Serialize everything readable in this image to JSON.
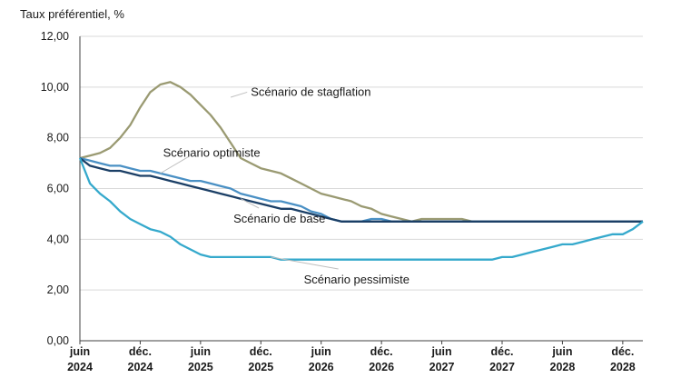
{
  "chart_data": {
    "type": "line",
    "ylabel": "Taux préférentiel, %",
    "title": "",
    "xlabel": "",
    "ylim": [
      0,
      12
    ],
    "y_ticks": [
      "0,00",
      "2,00",
      "4,00",
      "6,00",
      "8,00",
      "10,00",
      "12,00"
    ],
    "x_range": [
      "2024-06",
      "2028-12"
    ],
    "x_ticks": [
      {
        "x": "2024-06",
        "line1": "juin",
        "line2": "2024"
      },
      {
        "x": "2024-12",
        "line1": "déc.",
        "line2": "2024"
      },
      {
        "x": "2025-06",
        "line1": "juin",
        "line2": "2025"
      },
      {
        "x": "2025-12",
        "line1": "déc.",
        "line2": "2025"
      },
      {
        "x": "2026-06",
        "line1": "juin",
        "line2": "2026"
      },
      {
        "x": "2026-12",
        "line1": "déc.",
        "line2": "2026"
      },
      {
        "x": "2027-06",
        "line1": "juin",
        "line2": "2027"
      },
      {
        "x": "2027-12",
        "line1": "déc.",
        "line2": "2027"
      },
      {
        "x": "2028-06",
        "line1": "juin",
        "line2": "2028"
      },
      {
        "x": "2028-12",
        "line1": "déc.",
        "line2": "2028"
      }
    ],
    "grid": "horizontal",
    "legend": "none",
    "series": [
      {
        "name": "Scénario de stagflation",
        "color": "#9a9a72",
        "x": [
          "2024-06",
          "2024-07",
          "2024-08",
          "2024-09",
          "2024-10",
          "2024-11",
          "2024-12",
          "2025-01",
          "2025-02",
          "2025-03",
          "2025-04",
          "2025-05",
          "2025-06",
          "2025-07",
          "2025-08",
          "2025-09",
          "2025-10",
          "2025-11",
          "2025-12",
          "2026-01",
          "2026-02",
          "2026-03",
          "2026-04",
          "2026-05",
          "2026-06",
          "2026-07",
          "2026-08",
          "2026-09",
          "2026-10",
          "2026-11",
          "2026-12",
          "2027-01",
          "2027-02",
          "2027-03",
          "2027-04",
          "2027-05",
          "2027-06",
          "2027-07",
          "2027-08",
          "2027-09",
          "2028-12",
          "2029-02"
        ],
        "values": [
          7.2,
          7.3,
          7.4,
          7.6,
          8.0,
          8.5,
          9.2,
          9.8,
          10.1,
          10.2,
          10.0,
          9.7,
          9.3,
          8.9,
          8.4,
          7.8,
          7.2,
          7.0,
          6.8,
          6.7,
          6.6,
          6.4,
          6.2,
          6.0,
          5.8,
          5.7,
          5.6,
          5.5,
          5.3,
          5.2,
          5.0,
          4.9,
          4.8,
          4.7,
          4.8,
          4.8,
          4.8,
          4.8,
          4.8,
          4.7,
          4.7,
          4.7
        ]
      },
      {
        "name": "Scénario optimiste",
        "color": "#4a90c4",
        "x": [
          "2024-06",
          "2024-07",
          "2024-08",
          "2024-09",
          "2024-10",
          "2024-11",
          "2024-12",
          "2025-01",
          "2025-02",
          "2025-03",
          "2025-04",
          "2025-05",
          "2025-06",
          "2025-07",
          "2025-08",
          "2025-09",
          "2025-10",
          "2025-11",
          "2025-12",
          "2026-01",
          "2026-02",
          "2026-03",
          "2026-04",
          "2026-05",
          "2026-06",
          "2026-07",
          "2026-08",
          "2026-09",
          "2026-10",
          "2026-11",
          "2026-12",
          "2027-01",
          "2028-12",
          "2029-02"
        ],
        "values": [
          7.2,
          7.1,
          7.0,
          6.9,
          6.9,
          6.8,
          6.7,
          6.7,
          6.6,
          6.5,
          6.4,
          6.3,
          6.3,
          6.2,
          6.1,
          6.0,
          5.8,
          5.7,
          5.6,
          5.5,
          5.5,
          5.4,
          5.3,
          5.1,
          5.0,
          4.8,
          4.7,
          4.7,
          4.7,
          4.8,
          4.8,
          4.7,
          4.7,
          4.7
        ]
      },
      {
        "name": "Scénario de base",
        "color": "#1b3f66",
        "x": [
          "2024-06",
          "2024-07",
          "2024-08",
          "2024-09",
          "2024-10",
          "2024-11",
          "2024-12",
          "2025-01",
          "2025-02",
          "2025-03",
          "2025-04",
          "2025-05",
          "2025-06",
          "2025-07",
          "2025-08",
          "2025-09",
          "2025-10",
          "2025-11",
          "2025-12",
          "2026-01",
          "2026-02",
          "2026-03",
          "2026-04",
          "2026-05",
          "2026-06",
          "2026-07",
          "2026-08",
          "2028-12",
          "2029-02"
        ],
        "values": [
          7.2,
          6.9,
          6.8,
          6.7,
          6.7,
          6.6,
          6.5,
          6.5,
          6.4,
          6.3,
          6.2,
          6.1,
          6.0,
          5.9,
          5.8,
          5.7,
          5.6,
          5.5,
          5.4,
          5.3,
          5.2,
          5.2,
          5.1,
          5.0,
          4.9,
          4.8,
          4.7,
          4.7,
          4.7
        ]
      },
      {
        "name": "Scénario pessimiste",
        "color": "#35a9cc",
        "x": [
          "2024-06",
          "2024-07",
          "2024-08",
          "2024-09",
          "2024-10",
          "2024-11",
          "2024-12",
          "2025-01",
          "2025-02",
          "2025-03",
          "2025-04",
          "2025-05",
          "2025-06",
          "2025-07",
          "2025-08",
          "2025-09",
          "2025-10",
          "2025-11",
          "2025-12",
          "2026-01",
          "2026-02",
          "2027-11",
          "2027-12",
          "2028-01",
          "2028-02",
          "2028-03",
          "2028-04",
          "2028-05",
          "2028-06",
          "2028-07",
          "2028-08",
          "2028-09",
          "2028-10",
          "2028-11",
          "2028-12",
          "2029-01",
          "2029-02"
        ],
        "values": [
          7.2,
          6.2,
          5.8,
          5.5,
          5.1,
          4.8,
          4.6,
          4.4,
          4.3,
          4.1,
          3.8,
          3.6,
          3.4,
          3.3,
          3.3,
          3.3,
          3.3,
          3.3,
          3.3,
          3.3,
          3.2,
          3.2,
          3.3,
          3.3,
          3.4,
          3.5,
          3.6,
          3.7,
          3.8,
          3.8,
          3.9,
          4.0,
          4.1,
          4.2,
          4.2,
          4.4,
          4.7
        ]
      }
    ],
    "annotations": [
      {
        "text": "Scénario de stagflation",
        "series": 0,
        "at": [
          "2025-09",
          9.6
        ],
        "label": [
          "2025-11",
          9.8
        ]
      },
      {
        "text": "Scénario optimiste",
        "series": 1,
        "at": [
          "2025-02",
          6.6
        ],
        "label": [
          "2025-03",
          7.4
        ]
      },
      {
        "text": "Scénario de base",
        "series": 2,
        "at": [
          "2025-10",
          5.6
        ],
        "label": [
          "2025-10",
          4.8
        ]
      },
      {
        "text": "Scénario pessimiste",
        "series": 3,
        "at": [
          "2026-01",
          3.3
        ],
        "label": [
          "2026-05",
          2.4
        ]
      }
    ]
  }
}
